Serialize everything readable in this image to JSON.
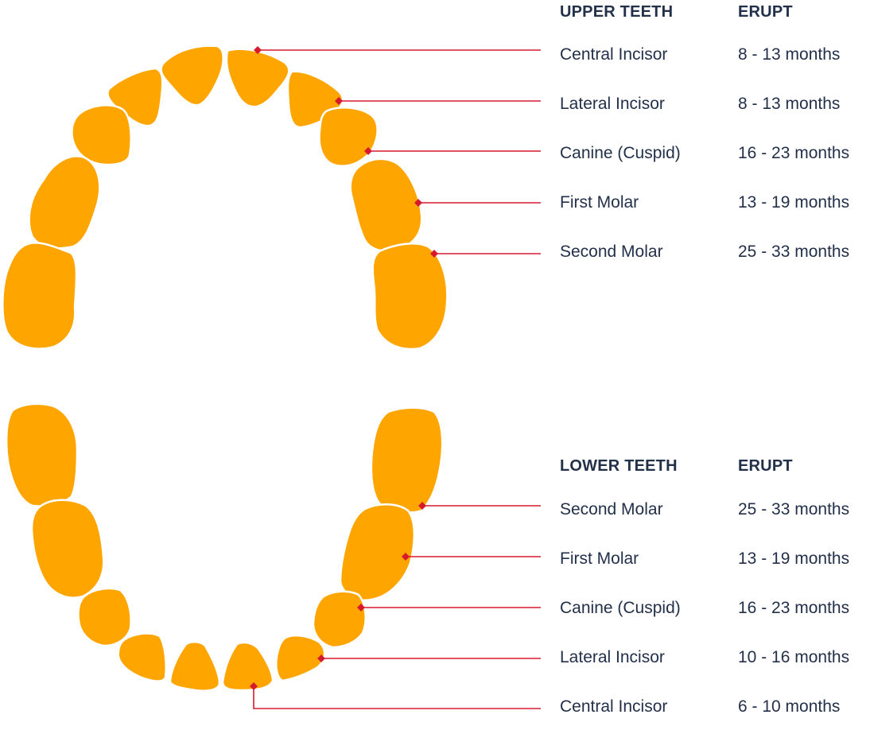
{
  "colors": {
    "tooth": "#FFA500",
    "pointer": "#D7192E",
    "text": "#23304A"
  },
  "upper": {
    "header_label": "UPPER TEETH",
    "header_erupt": "ERUPT",
    "rows": [
      {
        "name": "Central Incisor",
        "erupt": "8 - 13 months"
      },
      {
        "name": "Lateral Incisor",
        "erupt": "8 - 13 months"
      },
      {
        "name": "Canine (Cuspid)",
        "erupt": "16 - 23 months"
      },
      {
        "name": "First Molar",
        "erupt": "13 - 19 months"
      },
      {
        "name": "Second Molar",
        "erupt": "25 - 33 months"
      }
    ]
  },
  "lower": {
    "header_label": "LOWER TEETH",
    "header_erupt": "ERUPT",
    "rows": [
      {
        "name": "Second Molar",
        "erupt": "25 - 33 months"
      },
      {
        "name": "First Molar",
        "erupt": "13 - 19 months"
      },
      {
        "name": "Canine (Cuspid)",
        "erupt": "16 - 23 months"
      },
      {
        "name": "Lateral Incisor",
        "erupt": "10 - 16 months"
      },
      {
        "name": "Central Incisor",
        "erupt": "6 - 10 months"
      }
    ]
  }
}
